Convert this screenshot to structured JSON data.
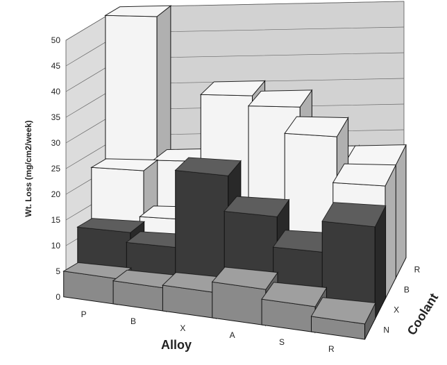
{
  "chart_data": {
    "type": "bar3d",
    "xlabel": "Alloy",
    "ylabel": "Wt. Loss (mg/cm2/week)",
    "zlabel": "Coolant",
    "categories": [
      "P",
      "B",
      "X",
      "A",
      "S",
      "R"
    ],
    "depth_categories": [
      "N",
      "X",
      "B",
      "R"
    ],
    "ylim": [
      0,
      50
    ],
    "yticks": [
      0,
      5,
      10,
      15,
      20,
      25,
      30,
      35,
      40,
      45,
      50
    ],
    "grid": true,
    "series": [
      {
        "name": "N",
        "values": [
          5,
          4.5,
          5,
          7,
          5,
          3
        ],
        "color": "#8a8a8a"
      },
      {
        "name": "X",
        "values": [
          12,
          10,
          25,
          18,
          12,
          18
        ],
        "color": "#3a3a3a"
      },
      {
        "name": "B",
        "values": [
          22,
          13,
          12,
          12,
          31,
          22
        ],
        "color": "#f4f4f4"
      },
      {
        "name": "R",
        "values": [
          50,
          22,
          35,
          33,
          22,
          22
        ],
        "color": "#f4f4f4"
      }
    ]
  }
}
